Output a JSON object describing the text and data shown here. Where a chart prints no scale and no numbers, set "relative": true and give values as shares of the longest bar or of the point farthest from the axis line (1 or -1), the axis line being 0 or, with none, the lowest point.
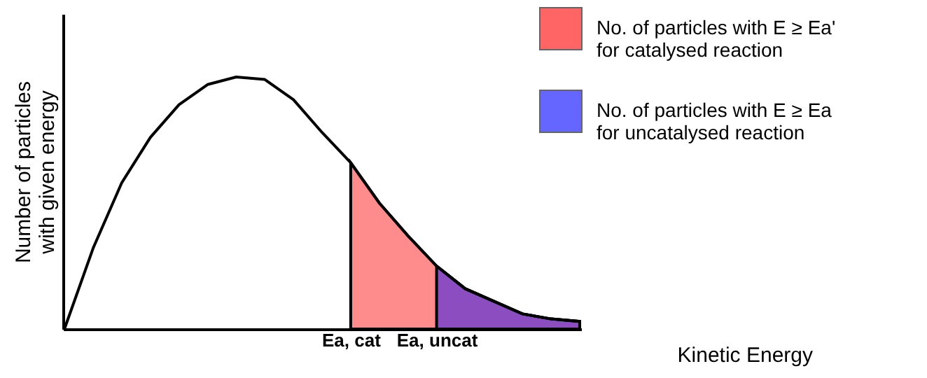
{
  "chart_data": {
    "type": "line",
    "relative": true,
    "xlabel": "Kinetic Energy",
    "ylabel": "Number of particles with given energy",
    "legend": "top right",
    "grid": false,
    "categories": [
      null,
      null,
      null,
      null,
      null,
      null,
      null,
      null,
      null,
      null,
      "Ea, cat",
      null,
      null,
      "Ea, uncat",
      null,
      null,
      null,
      null,
      null
    ],
    "series": [
      {
        "color": "#000000",
        "values": [
          0,
          0.32,
          0.58,
          0.76,
          0.89,
          0.97,
          1.0,
          0.99,
          0.91,
          0.78,
          0.66,
          0.5,
          0.37,
          0.25,
          0.16,
          0.11,
          0.06,
          0.04,
          0.03
        ]
      },
      {
        "type": "area",
        "name": "No. of particles with E ≥ Ea' for catalysed reaction",
        "color": "#ff0000",
        "values": [
          null,
          null,
          null,
          null,
          null,
          null,
          null,
          null,
          null,
          null,
          0.66,
          0.5,
          0.37,
          0.25,
          0.16,
          0.11,
          0.06,
          0.04,
          0.03
        ]
      },
      {
        "type": "area",
        "name": "No. of particles with E ≥ Ea for uncatalysed reaction",
        "color": "#0000ff",
        "values": [
          null,
          null,
          null,
          null,
          null,
          null,
          null,
          null,
          null,
          null,
          null,
          null,
          null,
          0.25,
          0.16,
          0.11,
          0.06,
          0.04,
          0.03
        ]
      }
    ]
  }
}
